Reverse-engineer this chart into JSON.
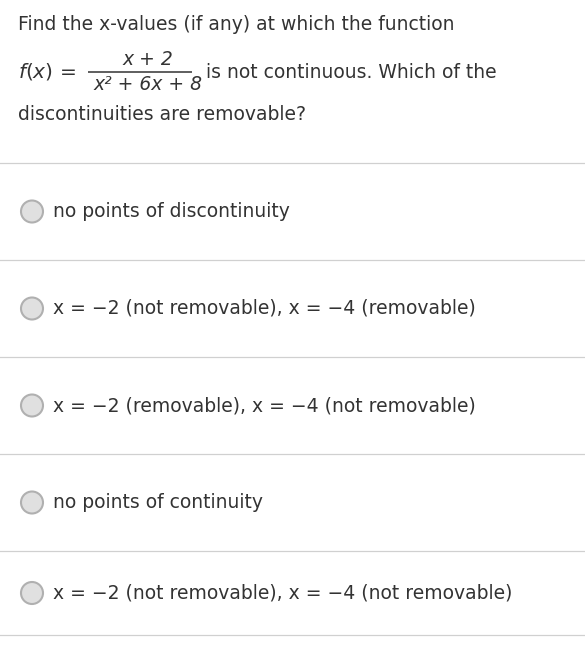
{
  "bg_color": "#ffffff",
  "text_color": "#333333",
  "question_line1": "Find the x-values (if any) at which the function",
  "numerator": "x + 2",
  "denominator": "x² + 6x + 8",
  "question_line2": " is not continuous. Which of the",
  "question_line3": "discontinuities are removable?",
  "options": [
    "no points of discontinuity",
    "x = −2 (not removable), x = −4 (removable)",
    "x = −2 (removable), x = −4 (not removable)",
    "no points of continuity",
    "x = −2 (not removable), x = −4 (not removable)"
  ],
  "divider_color": "#d0d0d0",
  "circle_edge_color": "#b0b0b0",
  "circle_face_color": "#e0e0e0",
  "font_size_q": 13.5,
  "font_size_opt": 13.5,
  "figw": 5.85,
  "figh": 6.51,
  "dpi": 100
}
